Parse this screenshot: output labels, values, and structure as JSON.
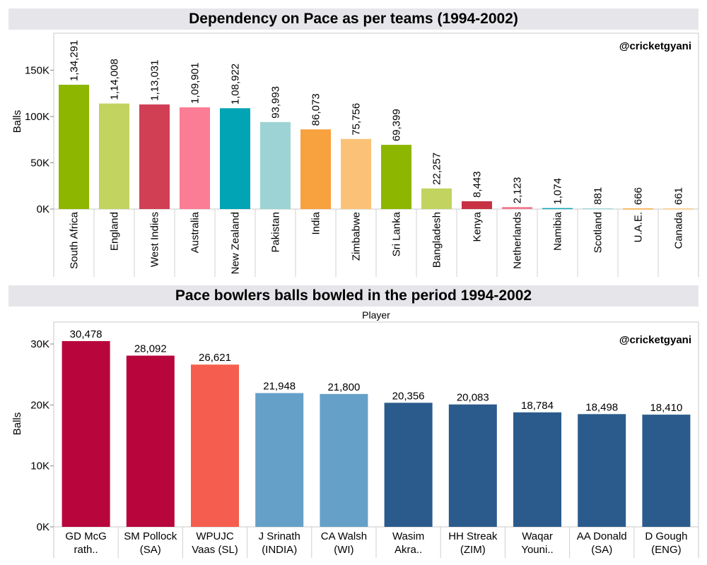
{
  "chart_data": [
    {
      "type": "bar",
      "title": "Dependency on Pace as per teams (1994-2002)",
      "watermark": "@cricketgyani",
      "ylabel": "Balls",
      "xlabel": "",
      "yticks": [
        "0K",
        "50K",
        "100K",
        "150K"
      ],
      "ytick_values": [
        0,
        50000,
        100000,
        150000
      ],
      "ylim": [
        0,
        190000
      ],
      "grid": false,
      "categories": [
        "South Africa",
        "England",
        "West Indies",
        "Australia",
        "New Zealand",
        "Pakistan",
        "India",
        "Zimbabwe",
        "Sri Lanka",
        "Bangladesh",
        "Kenya",
        "Netherlands",
        "Namibia",
        "Scotland",
        "U.A.E.",
        "Canada"
      ],
      "values": [
        134291,
        114008,
        113031,
        109901,
        108922,
        93993,
        86073,
        75756,
        69399,
        22257,
        8443,
        2123,
        1074,
        881,
        666,
        661
      ],
      "data_labels": [
        "1,34,291",
        "1,14,008",
        "1,13,031",
        "1,09,901",
        "1,08,922",
        "93,993",
        "86,073",
        "75,756",
        "69,399",
        "22,257",
        "8,443",
        "2,123",
        "1,074",
        "881",
        "666",
        "661"
      ],
      "colors": [
        "#8db600",
        "#c2d35f",
        "#d13f55",
        "#fb7c95",
        "#01a4b4",
        "#9dd3d4",
        "#f7a13f",
        "#fbc277",
        "#8db600",
        "#c2d35f",
        "#c83143",
        "#f2798f",
        "#12a5b5",
        "#a3d6d7",
        "#f4a53e",
        "#f8c37e"
      ]
    },
    {
      "type": "bar",
      "title": "Pace bowlers balls bowled in the period 1994-2002",
      "subtitle": "Player",
      "watermark": "@cricketgyani",
      "ylabel": "Balls",
      "xlabel": "",
      "yticks": [
        "0K",
        "10K",
        "20K",
        "30K"
      ],
      "ytick_values": [
        0,
        10000,
        20000,
        30000
      ],
      "ylim": [
        0,
        33600
      ],
      "grid": false,
      "categories": [
        [
          "GD McG",
          "rath.."
        ],
        [
          "SM Pollock",
          "(SA)"
        ],
        [
          "WPUJC",
          "Vaas (SL)"
        ],
        [
          "J Srinath",
          "(INDIA)"
        ],
        [
          "CA Walsh",
          "(WI)"
        ],
        [
          "Wasim",
          "Akra.."
        ],
        [
          "HH Streak",
          "(ZIM)"
        ],
        [
          "Waqar",
          "Youni.."
        ],
        [
          "AA Donald",
          "(SA)"
        ],
        [
          "D Gough",
          "(ENG)"
        ]
      ],
      "values": [
        30478,
        28092,
        26621,
        21948,
        21800,
        20356,
        20083,
        18784,
        18498,
        18410
      ],
      "data_labels": [
        "30,478",
        "28,092",
        "26,621",
        "21,948",
        "21,800",
        "20,356",
        "20,083",
        "18,784",
        "18,498",
        "18,410"
      ],
      "colors": [
        "#b8063d",
        "#b8063d",
        "#f55e4e",
        "#65a0c8",
        "#65a0c8",
        "#2b5b8c",
        "#2b5b8c",
        "#2b5b8c",
        "#2b5b8c",
        "#2b5b8c"
      ]
    }
  ]
}
